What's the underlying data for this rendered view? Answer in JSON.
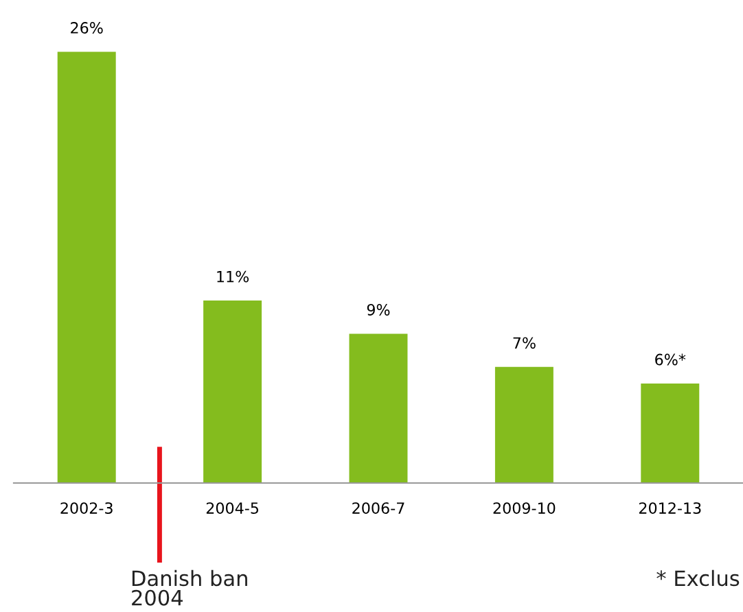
{
  "chart_data": {
    "type": "bar",
    "categories": [
      "2002-3",
      "2004-5",
      "2006-7",
      "2009-10",
      "2012-13"
    ],
    "values": [
      26,
      11,
      9,
      7,
      6
    ],
    "color": "#84bc1e",
    "value_labels": [
      "26%",
      "11%",
      "9%",
      "7%",
      "6%*"
    ],
    "annotations": [
      "Danish ban\n2004",
      "* Exclus"
    ],
    "grid": false,
    "legend": false
  }
}
